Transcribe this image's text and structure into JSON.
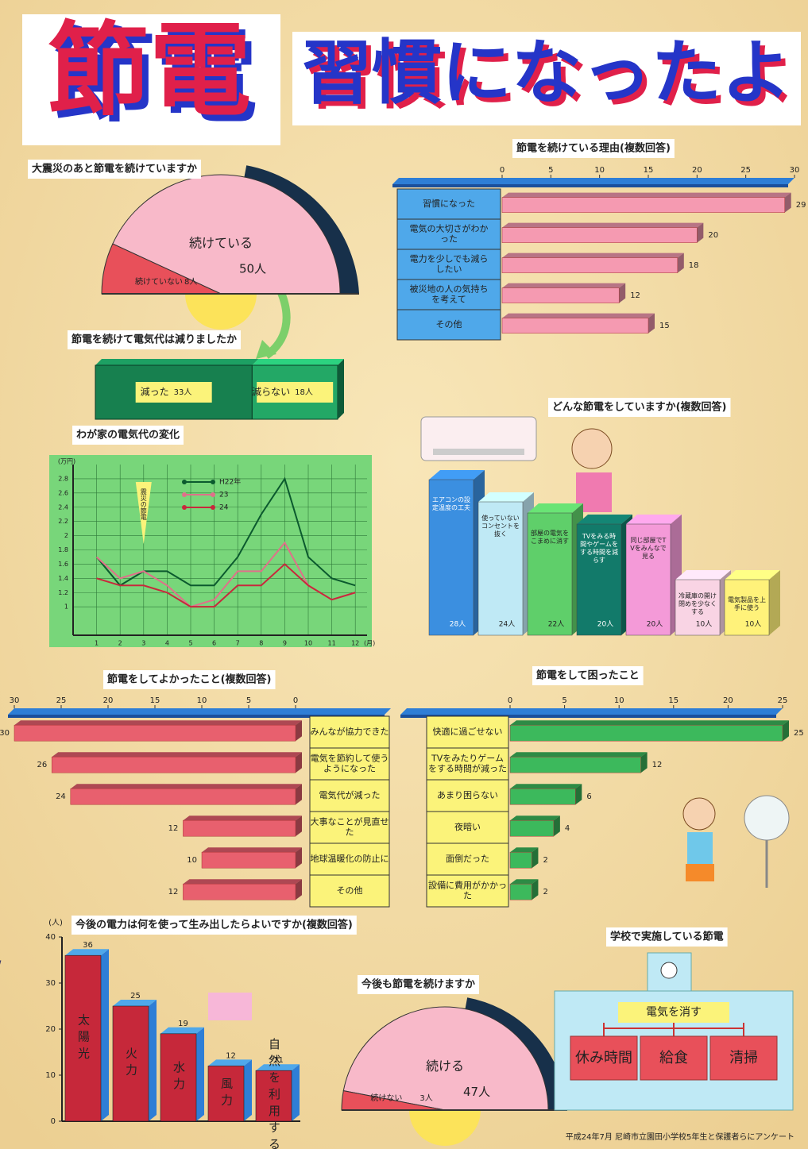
{
  "header": {
    "title_main": "節電",
    "title_sub": "習慣になったよ"
  },
  "chart_data": [
    {
      "type": "semicircle-pie",
      "title": "大震災のあと節電を続けていますか",
      "categories": [
        "続けている",
        "続けていない"
      ],
      "values": [
        50,
        8
      ],
      "value_labels": [
        "50人",
        "8人"
      ],
      "colors": [
        "#f8b9c9",
        "#e8505a"
      ]
    },
    {
      "type": "hbar",
      "title": "節電を続けている理由(複数回答)",
      "categories": [
        "習慣になった",
        "電気の大切さがわかった",
        "電力を少しでも減らしたい",
        "被災地の人の気持ちを考えて",
        "その他"
      ],
      "values": [
        29,
        20,
        18,
        12,
        15
      ],
      "color": "#f59ab1",
      "xlim": [
        0,
        30
      ],
      "xticks": [
        0,
        5,
        10,
        15,
        20,
        25,
        30
      ],
      "direction": "right"
    },
    {
      "type": "stacked-hbar",
      "title": "節電を続けて電気代は減りましたか",
      "series": [
        {
          "name": "減った",
          "values": [
            33
          ],
          "value_labels": [
            "33人"
          ],
          "color": "#17804f"
        },
        {
          "name": "減らない",
          "values": [
            18
          ],
          "value_labels": [
            "18人"
          ],
          "color": "#23a866"
        }
      ]
    },
    {
      "type": "line",
      "title": "わが家の電気代の変化",
      "y_label": "(万円)",
      "x_label": "(月)",
      "x": [
        1,
        2,
        3,
        4,
        5,
        6,
        7,
        8,
        9,
        10,
        11,
        12
      ],
      "xlim": [
        0,
        12.5
      ],
      "xticks": [
        1,
        2,
        3,
        4,
        5,
        6,
        7,
        8,
        9,
        10,
        11,
        12
      ],
      "ylim": [
        0.6,
        3.0
      ],
      "yticks": [
        1,
        1.2,
        1.4,
        1.6,
        1.8,
        2,
        2.2,
        2.4,
        2.6,
        2.8
      ],
      "grid": true,
      "annotation": "震災の節電",
      "series": [
        {
          "name": "H22年",
          "color": "#0b5a2e",
          "values": [
            1.7,
            1.3,
            1.5,
            1.5,
            1.3,
            1.3,
            1.7,
            2.3,
            2.8,
            1.7,
            1.4,
            1.3
          ]
        },
        {
          "name": "23",
          "color": "#e0708a",
          "values": [
            1.7,
            1.4,
            1.5,
            1.3,
            1.0,
            1.1,
            1.5,
            1.5,
            1.9,
            1.3,
            1.1,
            1.2
          ]
        },
        {
          "name": "24",
          "color": "#c8283c",
          "values": [
            1.4,
            1.3,
            1.3,
            1.2,
            1.0,
            1.0,
            1.3,
            1.3,
            1.6,
            1.3,
            1.1,
            1.2
          ]
        }
      ]
    },
    {
      "type": "column-3d",
      "title": "どんな節電をしていますか(複数回答)",
      "categories": [
        "エアコンの設定温度の工夫",
        "使っていないコンセントを抜く",
        "部屋の電気をこまめに消す",
        "TVをみる時間やゲームをする時間を減らす",
        "同じ部屋でTVをみんなで見る",
        "冷蔵庫の開け閉めを少なくする",
        "電気製品を上手に使う"
      ],
      "values": [
        28,
        24,
        22,
        20,
        20,
        10,
        10
      ],
      "value_labels": [
        "28人",
        "24人",
        "22人",
        "20人",
        "20人",
        "10人",
        "10人"
      ],
      "colors": [
        "#3b8fe0",
        "#bfe9f5",
        "#5fcf6a",
        "#127a6a",
        "#f49ad8",
        "#f9d4e4",
        "#fff27a"
      ]
    },
    {
      "type": "hbar",
      "title": "節電をしてよかったこと(複数回答)",
      "categories": [
        "みんなが協力できた",
        "電気を節約して使うようになった",
        "電気代が減った",
        "大事なことが見直せた",
        "地球温暖化の防止に",
        "その他"
      ],
      "values": [
        30,
        26,
        24,
        12,
        10,
        12
      ],
      "color": "#e8606e",
      "xlim": [
        0,
        30
      ],
      "xticks": [
        0,
        5,
        10,
        15,
        20,
        25,
        30
      ],
      "direction": "left"
    },
    {
      "type": "hbar",
      "title": "節電をして困ったこと",
      "categories": [
        "快適に過ごせない",
        "TVをみたりゲームをする時間が減った",
        "あまり困らない",
        "夜暗い",
        "面倒だった",
        "設備に費用がかかった"
      ],
      "values": [
        25,
        12,
        6,
        4,
        2,
        2
      ],
      "color": "#3cb95c",
      "xlim": [
        0,
        25
      ],
      "xticks": [
        0,
        5,
        10,
        15,
        20,
        25
      ],
      "direction": "right"
    },
    {
      "type": "column",
      "title": "今後の電力は何を使って生み出したらよいですか(複数回答)",
      "y_label": "(人)",
      "categories": [
        "太陽光",
        "火力",
        "水力",
        "風力",
        "自然を利用する"
      ],
      "values": [
        36,
        25,
        19,
        12,
        11
      ],
      "color": "#c6283a",
      "ylim": [
        0,
        40
      ],
      "yticks": [
        0,
        10,
        20,
        30,
        40
      ]
    },
    {
      "type": "semicircle-pie",
      "title": "今後も節電を続けますか",
      "categories": [
        "続ける",
        "続けない"
      ],
      "values": [
        47,
        3
      ],
      "value_labels": [
        "47人",
        "3人"
      ],
      "colors": [
        "#f8b9c9",
        "#e8505a"
      ]
    }
  ],
  "school_diagram": {
    "title": "学校で実施している節電",
    "center": "電気を消す",
    "items": [
      "休み時間",
      "給食",
      "清掃"
    ]
  },
  "footer": "平成24年7月 尼崎市立園田小学校5年生と保護者らにアンケート"
}
